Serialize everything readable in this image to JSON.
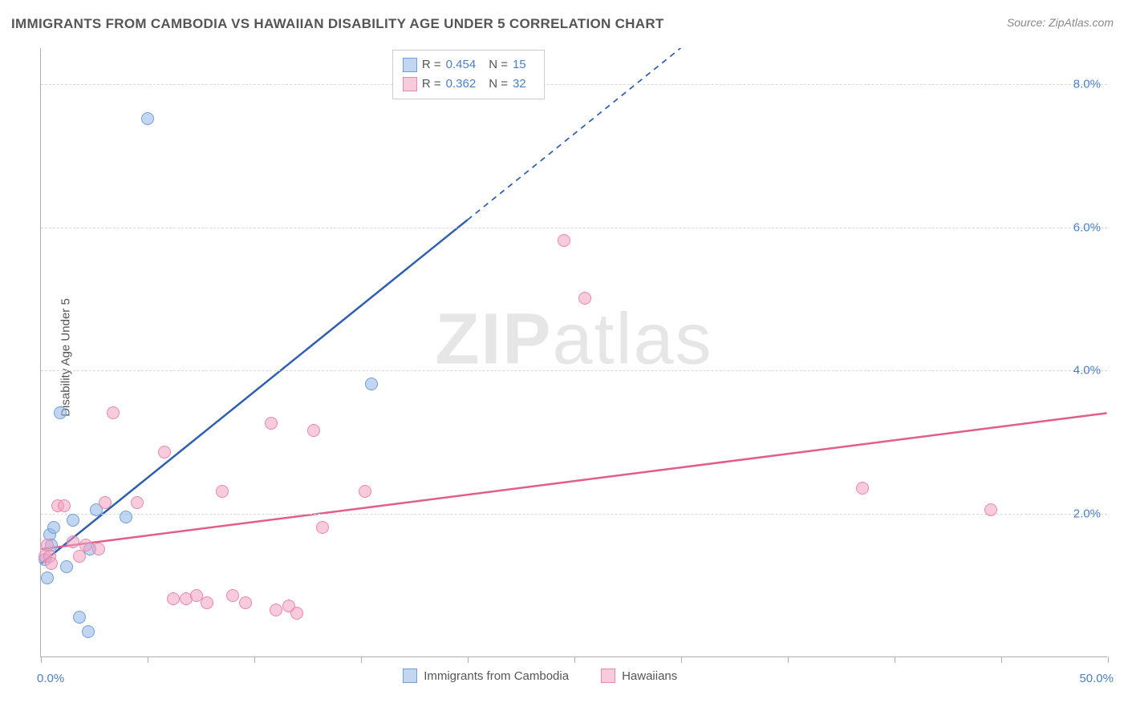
{
  "title": "IMMIGRANTS FROM CAMBODIA VS HAWAIIAN DISABILITY AGE UNDER 5 CORRELATION CHART",
  "source": "Source: ZipAtlas.com",
  "y_axis_label": "Disability Age Under 5",
  "watermark_a": "ZIP",
  "watermark_b": "atlas",
  "chart": {
    "type": "scatter",
    "xlim": [
      0,
      50
    ],
    "ylim": [
      0,
      8.5
    ],
    "x_ticks": [
      0,
      5,
      10,
      15,
      20,
      25,
      30,
      35,
      40,
      45,
      50
    ],
    "x_tick_labels": {
      "0": "0.0%",
      "50": "50.0%"
    },
    "y_ticks": [
      2,
      4,
      6,
      8
    ],
    "y_tick_labels": [
      "2.0%",
      "4.0%",
      "6.0%",
      "8.0%"
    ],
    "grid_color": "#d8d8d8",
    "background_color": "#ffffff",
    "marker_radius": 8,
    "series": [
      {
        "name": "Immigrants from Cambodia",
        "color_fill": "rgba(144,181,232,0.55)",
        "color_stroke": "#6f9fd8",
        "trend_color": "#2f5fb0",
        "trend_width": 2.5,
        "trend_solid_x_end": 20,
        "trend_slope": 0.24,
        "trend_intercept": 1.3,
        "R": "0.454",
        "N": "15",
        "points": [
          [
            0.2,
            1.35
          ],
          [
            0.3,
            1.1
          ],
          [
            0.4,
            1.7
          ],
          [
            0.5,
            1.55
          ],
          [
            0.6,
            1.8
          ],
          [
            0.9,
            3.4
          ],
          [
            1.2,
            1.25
          ],
          [
            1.5,
            1.9
          ],
          [
            1.8,
            0.55
          ],
          [
            2.2,
            0.35
          ],
          [
            2.3,
            1.5
          ],
          [
            2.6,
            2.05
          ],
          [
            4.0,
            1.95
          ],
          [
            5.0,
            7.5
          ],
          [
            15.5,
            3.8
          ]
        ]
      },
      {
        "name": "Hawaiians",
        "color_fill": "rgba(240,160,190,0.55)",
        "color_stroke": "#e888ab",
        "trend_color": "#e35d8a",
        "trend_width": 2.5,
        "trend_solid_x_end": 50,
        "trend_slope": 0.038,
        "trend_intercept": 1.5,
        "R": "0.362",
        "N": "32",
        "points": [
          [
            0.2,
            1.4
          ],
          [
            0.3,
            1.55
          ],
          [
            0.4,
            1.4
          ],
          [
            0.8,
            2.1
          ],
          [
            1.1,
            2.1
          ],
          [
            1.5,
            1.6
          ],
          [
            1.8,
            1.4
          ],
          [
            2.1,
            1.55
          ],
          [
            2.7,
            1.5
          ],
          [
            3.0,
            2.15
          ],
          [
            3.4,
            3.4
          ],
          [
            4.5,
            2.15
          ],
          [
            5.8,
            2.85
          ],
          [
            6.2,
            0.8
          ],
          [
            6.8,
            0.8
          ],
          [
            7.3,
            0.85
          ],
          [
            7.8,
            0.75
          ],
          [
            8.5,
            2.3
          ],
          [
            9.0,
            0.85
          ],
          [
            9.6,
            0.75
          ],
          [
            10.8,
            3.25
          ],
          [
            11.0,
            0.65
          ],
          [
            11.6,
            0.7
          ],
          [
            12.0,
            0.6
          ],
          [
            12.8,
            3.15
          ],
          [
            13.2,
            1.8
          ],
          [
            15.2,
            2.3
          ],
          [
            24.5,
            5.8
          ],
          [
            25.5,
            5.0
          ],
          [
            38.5,
            2.35
          ],
          [
            44.5,
            2.05
          ],
          [
            0.5,
            1.3
          ]
        ]
      }
    ]
  },
  "legend_top": {
    "rows": [
      {
        "swatch_fill": "rgba(144,181,232,0.55)",
        "swatch_stroke": "#6f9fd8",
        "R_label": "R =",
        "R": "0.454",
        "N_label": "N =",
        "N": "15"
      },
      {
        "swatch_fill": "rgba(240,160,190,0.55)",
        "swatch_stroke": "#e888ab",
        "R_label": "R =",
        "R": "0.362",
        "N_label": "N =",
        "N": "32"
      }
    ]
  },
  "legend_bottom": {
    "items": [
      {
        "swatch_fill": "rgba(144,181,232,0.55)",
        "swatch_stroke": "#6f9fd8",
        "label": "Immigrants from Cambodia"
      },
      {
        "swatch_fill": "rgba(240,160,190,0.55)",
        "swatch_stroke": "#e888ab",
        "label": "Hawaiians"
      }
    ]
  }
}
